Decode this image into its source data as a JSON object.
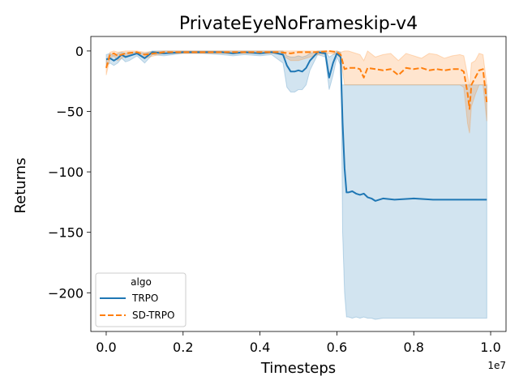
{
  "chart_data": {
    "type": "line",
    "title": "PrivateEyeNoFrameskip-v4",
    "xlabel": "Timesteps",
    "ylabel": "Returns",
    "x_offset_label": "1e7",
    "xlim": [
      -0.04,
      1.04
    ],
    "ylim": [
      -232,
      12
    ],
    "x_ticks": [
      0.0,
      0.2,
      0.4,
      0.6,
      0.8,
      1.0
    ],
    "x_tick_labels": [
      "0.0",
      "0.2",
      "0.4",
      "0.6",
      "0.8",
      "1.0"
    ],
    "y_ticks": [
      0,
      -50,
      -100,
      -150,
      -200
    ],
    "y_tick_labels": [
      "0",
      "−50",
      "−100",
      "−150",
      "−200"
    ],
    "grid": false,
    "legend": {
      "title": "algo",
      "position": "lower-left"
    },
    "series": [
      {
        "name": "TRPO",
        "color": "#1f77b4",
        "style": "solid",
        "x": [
          0.0,
          0.01,
          0.02,
          0.03,
          0.04,
          0.05,
          0.06,
          0.08,
          0.1,
          0.12,
          0.15,
          0.2,
          0.25,
          0.3,
          0.33,
          0.36,
          0.4,
          0.43,
          0.46,
          0.47,
          0.48,
          0.49,
          0.5,
          0.51,
          0.52,
          0.53,
          0.55,
          0.57,
          0.58,
          0.59,
          0.6,
          0.61,
          0.612,
          0.615,
          0.62,
          0.625,
          0.63,
          0.64,
          0.65,
          0.66,
          0.67,
          0.68,
          0.69,
          0.7,
          0.72,
          0.75,
          0.8,
          0.85,
          0.9,
          0.95,
          0.99
        ],
        "y": [
          -7,
          -6,
          -8,
          -6,
          -3,
          -5,
          -4,
          -2,
          -6,
          -1,
          -2,
          -1,
          -1,
          -1,
          -2,
          -1,
          -2,
          -1,
          -3,
          -12,
          -17,
          -17,
          -16,
          -17,
          -14,
          -8,
          -1,
          -2,
          -22,
          -10,
          -2,
          -5,
          -30,
          -60,
          -97,
          -117,
          -117,
          -116,
          -118,
          -119,
          -118,
          -121,
          -122,
          -124,
          -122,
          -123,
          -122,
          -123,
          -123,
          -123,
          -123
        ],
        "upper": [
          -3,
          -2,
          -4,
          -2,
          -1,
          -2,
          -1,
          -1,
          -2,
          0,
          0,
          0,
          0,
          0,
          0,
          0,
          0,
          0,
          0,
          -4,
          -5,
          -5,
          -4,
          -5,
          -4,
          -2,
          0,
          0,
          -5,
          -3,
          0,
          -1,
          -28,
          -28,
          -28,
          -28,
          -28,
          -28,
          -28,
          -28,
          -28,
          -28,
          -28,
          -28,
          -28,
          -28,
          -28,
          -28,
          -28,
          -28,
          -28
        ],
        "lower": [
          -12,
          -10,
          -12,
          -10,
          -6,
          -9,
          -8,
          -4,
          -10,
          -3,
          -4,
          -2,
          -2,
          -3,
          -4,
          -3,
          -4,
          -3,
          -10,
          -30,
          -34,
          -34,
          -32,
          -32,
          -28,
          -16,
          -3,
          -5,
          -32,
          -20,
          -5,
          -12,
          -50,
          -150,
          -200,
          -220,
          -220,
          -221,
          -220,
          -221,
          -220,
          -221,
          -221,
          -222,
          -221,
          -221,
          -221,
          -221,
          -221,
          -221,
          -221
        ]
      },
      {
        "name": "SD-TRPO",
        "color": "#ff7f0e",
        "style": "dashed",
        "x": [
          0.0,
          0.01,
          0.02,
          0.03,
          0.05,
          0.08,
          0.1,
          0.15,
          0.2,
          0.3,
          0.4,
          0.45,
          0.48,
          0.5,
          0.52,
          0.55,
          0.58,
          0.6,
          0.61,
          0.62,
          0.63,
          0.65,
          0.66,
          0.67,
          0.68,
          0.7,
          0.72,
          0.74,
          0.76,
          0.78,
          0.8,
          0.82,
          0.84,
          0.86,
          0.88,
          0.9,
          0.92,
          0.93,
          0.94,
          0.945,
          0.95,
          0.96,
          0.97,
          0.98,
          0.99
        ],
        "y": [
          -14,
          -3,
          -2,
          -4,
          -2,
          -1,
          -3,
          -1,
          -1,
          -1,
          -1,
          -1,
          -2,
          -1,
          -1,
          -1,
          0,
          -1,
          -3,
          -15,
          -14,
          -14,
          -15,
          -22,
          -14,
          -15,
          -16,
          -15,
          -20,
          -14,
          -15,
          -14,
          -16,
          -15,
          -16,
          -15,
          -15,
          -17,
          -35,
          -48,
          -28,
          -22,
          -16,
          -15,
          -43
        ],
        "upper": [
          -8,
          -1,
          0,
          -1,
          0,
          0,
          -1,
          0,
          0,
          0,
          0,
          0,
          0,
          0,
          0,
          0,
          0,
          0,
          -1,
          0,
          0,
          -2,
          -3,
          -8,
          0,
          -5,
          -3,
          -2,
          -8,
          -2,
          -4,
          -6,
          -2,
          -3,
          -6,
          -4,
          -3,
          -4,
          -20,
          -30,
          -10,
          -8,
          -2,
          -3,
          -28
        ],
        "lower": [
          -20,
          -6,
          -4,
          -8,
          -4,
          -2,
          -6,
          -2,
          -2,
          -2,
          -2,
          -2,
          -8,
          -8,
          -6,
          -3,
          -2,
          -3,
          -6,
          -28,
          -28,
          -28,
          -28,
          -28,
          -28,
          -28,
          -28,
          -28,
          -28,
          -28,
          -28,
          -28,
          -28,
          -28,
          -28,
          -28,
          -28,
          -30,
          -60,
          -68,
          -46,
          -36,
          -28,
          -28,
          -58
        ]
      }
    ]
  }
}
